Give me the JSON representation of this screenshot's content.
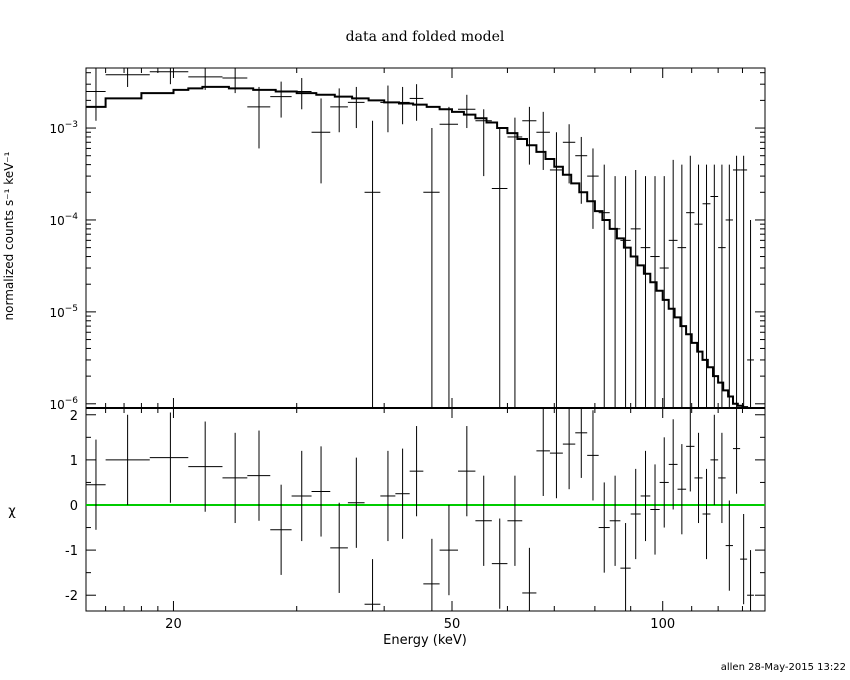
{
  "title": "data and folded model",
  "footer": "allen 28-May-2015 13:22",
  "colors": {
    "axes": "#000000",
    "data": "#000000",
    "model": "#000000",
    "zero_line": "#00cc00"
  },
  "chart_data": [
    {
      "type": "scatter",
      "panel": "spectrum",
      "title": "data and folded model",
      "xlabel": "Energy (keV)",
      "ylabel": "normalized counts s⁻¹ keV⁻¹",
      "xscale": "log",
      "yscale": "log",
      "xlim": [
        15,
        140
      ],
      "ylim": [
        9e-07,
        0.0045
      ],
      "x_ticks": [
        20,
        50,
        100
      ],
      "y_ticks": [
        {
          "value": 0.001,
          "base": "10",
          "exp": "−3"
        },
        {
          "value": 0.0001,
          "base": "10",
          "exp": "−4"
        },
        {
          "value": 1e-05,
          "base": "10",
          "exp": "−5"
        },
        {
          "value": 1e-06,
          "base": "10",
          "exp": "−6"
        }
      ],
      "series": [
        {
          "kind": "data",
          "points": [
            {
              "x": 15.5,
              "xlo": 15,
              "xhi": 16,
              "y": 0.0025,
              "ylo": 0.0012,
              "yhi": 0.0045
            },
            {
              "x": 17.2,
              "xlo": 16,
              "xhi": 18.5,
              "y": 0.0038,
              "ylo": 0.0028,
              "yhi": 0.0045
            },
            {
              "x": 19.8,
              "xlo": 18.5,
              "xhi": 21,
              "y": 0.0041,
              "ylo": 0.003,
              "yhi": 0.0045
            },
            {
              "x": 22.2,
              "xlo": 21,
              "xhi": 23.5,
              "y": 0.0036,
              "ylo": 0.0026,
              "yhi": 0.0045
            },
            {
              "x": 24.5,
              "xlo": 23.5,
              "xhi": 25.5,
              "y": 0.0035,
              "ylo": 0.0024,
              "yhi": 0.0045
            },
            {
              "x": 26.5,
              "xlo": 25.5,
              "xhi": 27.5,
              "y": 0.0017,
              "ylo": 0.0006,
              "yhi": 0.0028
            },
            {
              "x": 28.5,
              "xlo": 27.5,
              "xhi": 29.5,
              "y": 0.0022,
              "ylo": 0.0013,
              "yhi": 0.0032
            },
            {
              "x": 30.5,
              "xlo": 29.5,
              "xhi": 31.5,
              "y": 0.0025,
              "ylo": 0.0016,
              "yhi": 0.0035
            },
            {
              "x": 32.5,
              "xlo": 31.5,
              "xhi": 33.5,
              "y": 0.0009,
              "ylo": 0.00025,
              "yhi": 0.0021
            },
            {
              "x": 34.5,
              "xlo": 33.5,
              "xhi": 35.5,
              "y": 0.0017,
              "ylo": 0.0009,
              "yhi": 0.0027
            },
            {
              "x": 36.5,
              "xlo": 35.5,
              "xhi": 37.5,
              "y": 0.0019,
              "ylo": 0.001,
              "yhi": 0.0028
            },
            {
              "x": 38.5,
              "xlo": 37.5,
              "xhi": 39.5,
              "y": 0.0002,
              "ylo": 9e-07,
              "yhi": 0.0012
            },
            {
              "x": 40.5,
              "xlo": 39.5,
              "xhi": 41.5,
              "y": 0.0019,
              "ylo": 0.0009,
              "yhi": 0.0029
            },
            {
              "x": 42.5,
              "xlo": 41.5,
              "xhi": 43.5,
              "y": 0.0019,
              "ylo": 0.0011,
              "yhi": 0.0028
            },
            {
              "x": 44.5,
              "xlo": 43.5,
              "xhi": 45.5,
              "y": 0.0021,
              "ylo": 0.0012,
              "yhi": 0.003
            },
            {
              "x": 46.8,
              "xlo": 45.5,
              "xhi": 48,
              "y": 0.0002,
              "ylo": 9e-07,
              "yhi": 0.001
            },
            {
              "x": 49.5,
              "xlo": 48,
              "xhi": 51,
              "y": 0.0011,
              "ylo": 9e-07,
              "yhi": 0.0017
            },
            {
              "x": 52.5,
              "xlo": 51,
              "xhi": 54,
              "y": 0.0016,
              "ylo": 0.001,
              "yhi": 0.0023
            },
            {
              "x": 55.5,
              "xlo": 54,
              "xhi": 57,
              "y": 0.0012,
              "ylo": 0.0003,
              "yhi": 0.0016
            },
            {
              "x": 58.5,
              "xlo": 57,
              "xhi": 60,
              "y": 0.00022,
              "ylo": 9e-07,
              "yhi": 0.001
            },
            {
              "x": 61.5,
              "xlo": 60,
              "xhi": 63,
              "y": 0.0008,
              "ylo": 9e-07,
              "yhi": 0.0013
            },
            {
              "x": 64.5,
              "xlo": 63,
              "xhi": 66,
              "y": 0.0012,
              "ylo": 0.0004,
              "yhi": 0.0017
            },
            {
              "x": 67.5,
              "xlo": 66,
              "xhi": 69,
              "y": 0.0009,
              "ylo": 0.00035,
              "yhi": 0.0015
            },
            {
              "x": 70.5,
              "xlo": 69,
              "xhi": 72,
              "y": 0.00035,
              "ylo": 9e-07,
              "yhi": 0.0009
            },
            {
              "x": 73.5,
              "xlo": 72,
              "xhi": 75,
              "y": 0.0007,
              "ylo": 0.00025,
              "yhi": 0.0011
            },
            {
              "x": 76.5,
              "xlo": 75,
              "xhi": 78,
              "y": 0.0005,
              "ylo": 0.00015,
              "yhi": 0.0008
            },
            {
              "x": 79.5,
              "xlo": 78,
              "xhi": 81,
              "y": 0.0003,
              "ylo": 8e-05,
              "yhi": 0.0006
            },
            {
              "x": 82.5,
              "xlo": 81,
              "xhi": 84,
              "y": 0.00012,
              "ylo": 9e-07,
              "yhi": 0.0004
            },
            {
              "x": 85.5,
              "xlo": 84,
              "xhi": 87,
              "y": 8e-05,
              "ylo": 9e-07,
              "yhi": 0.0003
            },
            {
              "x": 88.5,
              "xlo": 87,
              "xhi": 90,
              "y": 6e-05,
              "ylo": 9e-07,
              "yhi": 0.0003
            },
            {
              "x": 91.5,
              "xlo": 90,
              "xhi": 93,
              "y": 8e-05,
              "ylo": 9e-07,
              "yhi": 0.00035
            },
            {
              "x": 94.5,
              "xlo": 93,
              "xhi": 96,
              "y": 5e-05,
              "ylo": 9e-07,
              "yhi": 0.0003
            },
            {
              "x": 97.5,
              "xlo": 96,
              "xhi": 99,
              "y": 4e-05,
              "ylo": 9e-07,
              "yhi": 0.0003
            },
            {
              "x": 100.5,
              "xlo": 99,
              "xhi": 102,
              "y": 3e-05,
              "ylo": 9e-07,
              "yhi": 0.0003
            },
            {
              "x": 103.5,
              "xlo": 102,
              "xhi": 105,
              "y": 6e-05,
              "ylo": 9e-07,
              "yhi": 0.00045
            },
            {
              "x": 106.5,
              "xlo": 105,
              "xhi": 108,
              "y": 5e-05,
              "ylo": 9e-07,
              "yhi": 0.0004
            },
            {
              "x": 109.5,
              "xlo": 108,
              "xhi": 111,
              "y": 0.00012,
              "ylo": 9e-07,
              "yhi": 0.0005
            },
            {
              "x": 112.5,
              "xlo": 111,
              "xhi": 114,
              "y": 9e-05,
              "ylo": 9e-07,
              "yhi": 0.0004
            },
            {
              "x": 115.5,
              "xlo": 114,
              "xhi": 117,
              "y": 0.00015,
              "ylo": 9e-07,
              "yhi": 0.0004
            },
            {
              "x": 118.5,
              "xlo": 117,
              "xhi": 120,
              "y": 0.00018,
              "ylo": 9e-07,
              "yhi": 0.0004
            },
            {
              "x": 121.5,
              "xlo": 120,
              "xhi": 123,
              "y": 5e-05,
              "ylo": 9e-07,
              "yhi": 0.0004
            },
            {
              "x": 124.5,
              "xlo": 123,
              "xhi": 126,
              "y": 0.0001,
              "ylo": 9e-07,
              "yhi": 0.0004
            },
            {
              "x": 127.5,
              "xlo": 126,
              "xhi": 129,
              "y": 0.00035,
              "ylo": 9e-07,
              "yhi": 0.0005
            },
            {
              "x": 130.5,
              "xlo": 129,
              "xhi": 132,
              "y": 0.00035,
              "ylo": 9e-07,
              "yhi": 0.0005
            },
            {
              "x": 133.5,
              "xlo": 132,
              "xhi": 135,
              "y": 3e-06,
              "ylo": 9e-07,
              "yhi": 0.0001
            }
          ]
        },
        {
          "kind": "model",
          "edges": [
            15,
            16,
            18,
            20,
            21,
            22,
            24,
            26,
            28,
            30,
            32,
            34,
            36,
            38,
            40,
            42,
            44,
            46,
            48,
            50,
            52,
            54,
            56,
            58,
            60,
            62,
            64,
            66,
            68,
            70,
            72,
            74,
            76,
            78,
            80,
            82,
            84,
            86,
            88,
            90,
            92,
            94,
            96,
            98,
            100,
            102,
            104,
            106,
            108,
            110,
            112,
            114,
            116,
            118,
            120,
            122,
            124,
            126,
            128,
            130,
            132,
            134,
            136,
            138,
            140
          ],
          "values": [
            0.0017,
            0.0021,
            0.0024,
            0.0026,
            0.0027,
            0.0028,
            0.0027,
            0.0026,
            0.0025,
            0.0024,
            0.0023,
            0.0022,
            0.0021,
            0.002,
            0.0019,
            0.00185,
            0.0018,
            0.0017,
            0.0016,
            0.0015,
            0.0014,
            0.00128,
            0.00115,
            0.001,
            0.00088,
            0.00076,
            0.00065,
            0.00055,
            0.00046,
            0.00038,
            0.00031,
            0.00025,
            0.0002,
            0.00016,
            0.000125,
            0.0001,
            8e-05,
            6.3e-05,
            5e-05,
            4e-05,
            3.2e-05,
            2.6e-05,
            2.1e-05,
            1.7e-05,
            1.35e-05,
            1.08e-05,
            8.7e-06,
            7e-06,
            5.7e-06,
            4.6e-06,
            3.7e-06,
            3e-06,
            2.5e-06,
            2e-06,
            1.7e-06,
            1.4e-06,
            1.2e-06,
            1e-06,
            9.5e-07,
            9.2e-07,
            9e-07,
            9e-07,
            9e-07,
            9e-07
          ]
        }
      ]
    },
    {
      "type": "scatter",
      "panel": "residuals",
      "xlabel": "Energy (keV)",
      "ylabel": "χ",
      "xscale": "log",
      "xlim": [
        15,
        140
      ],
      "ylim": [
        -2.35,
        2.15
      ],
      "x_ticks": [
        20,
        50,
        100
      ],
      "y_ticks": [
        2,
        1,
        0,
        -1,
        -2
      ],
      "zero_line": 0,
      "points": [
        {
          "x": 15.5,
          "xlo": 15,
          "xhi": 16,
          "y": 0.45
        },
        {
          "x": 17.2,
          "xlo": 16,
          "xhi": 18.5,
          "y": 1.0
        },
        {
          "x": 19.8,
          "xlo": 18.5,
          "xhi": 21,
          "y": 1.05
        },
        {
          "x": 22.2,
          "xlo": 21,
          "xhi": 23.5,
          "y": 0.85
        },
        {
          "x": 24.5,
          "xlo": 23.5,
          "xhi": 25.5,
          "y": 0.6
        },
        {
          "x": 26.5,
          "xlo": 25.5,
          "xhi": 27.5,
          "y": 0.65
        },
        {
          "x": 28.5,
          "xlo": 27.5,
          "xhi": 29.5,
          "y": -0.55
        },
        {
          "x": 30.5,
          "xlo": 29.5,
          "xhi": 31.5,
          "y": 0.2
        },
        {
          "x": 32.5,
          "xlo": 31.5,
          "xhi": 33.5,
          "y": 0.3
        },
        {
          "x": 34.5,
          "xlo": 33.5,
          "xhi": 35.5,
          "y": -0.95
        },
        {
          "x": 36.5,
          "xlo": 35.5,
          "xhi": 37.5,
          "y": 0.05
        },
        {
          "x": 38.5,
          "xlo": 37.5,
          "xhi": 39.5,
          "y": -2.2
        },
        {
          "x": 40.5,
          "xlo": 39.5,
          "xhi": 41.5,
          "y": 0.2
        },
        {
          "x": 42.5,
          "xlo": 41.5,
          "xhi": 43.5,
          "y": 0.25
        },
        {
          "x": 44.5,
          "xlo": 43.5,
          "xhi": 45.5,
          "y": 0.75
        },
        {
          "x": 46.8,
          "xlo": 45.5,
          "xhi": 48,
          "y": -1.75
        },
        {
          "x": 49.5,
          "xlo": 48,
          "xhi": 51,
          "y": -1.0
        },
        {
          "x": 52.5,
          "xlo": 51,
          "xhi": 54,
          "y": 0.75
        },
        {
          "x": 55.5,
          "xlo": 54,
          "xhi": 57,
          "y": -0.35
        },
        {
          "x": 58.5,
          "xlo": 57,
          "xhi": 60,
          "y": -1.3
        },
        {
          "x": 61.5,
          "xlo": 60,
          "xhi": 63,
          "y": -0.35
        },
        {
          "x": 64.5,
          "xlo": 63,
          "xhi": 66,
          "y": -1.95
        },
        {
          "x": 67.5,
          "xlo": 66,
          "xhi": 69,
          "y": 1.2
        },
        {
          "x": 70.5,
          "xlo": 69,
          "xhi": 72,
          "y": 1.15
        },
        {
          "x": 73.5,
          "xlo": 72,
          "xhi": 75,
          "y": 1.35
        },
        {
          "x": 76.5,
          "xlo": 75,
          "xhi": 78,
          "y": 1.6
        },
        {
          "x": 79.5,
          "xlo": 78,
          "xhi": 81,
          "y": 1.1
        },
        {
          "x": 82.5,
          "xlo": 81,
          "xhi": 84,
          "y": -0.5
        },
        {
          "x": 85.5,
          "xlo": 84,
          "xhi": 87,
          "y": -0.35
        },
        {
          "x": 88.5,
          "xlo": 87,
          "xhi": 90,
          "y": -1.4
        },
        {
          "x": 91.5,
          "xlo": 90,
          "xhi": 93,
          "y": -0.2
        },
        {
          "x": 94.5,
          "xlo": 93,
          "xhi": 96,
          "y": 0.2
        },
        {
          "x": 97.5,
          "xlo": 96,
          "xhi": 99,
          "y": -0.1
        },
        {
          "x": 100.5,
          "xlo": 99,
          "xhi": 102,
          "y": 0.5
        },
        {
          "x": 103.5,
          "xlo": 102,
          "xhi": 105,
          "y": 0.9
        },
        {
          "x": 106.5,
          "xlo": 105,
          "xhi": 108,
          "y": 0.35
        },
        {
          "x": 109.5,
          "xlo": 108,
          "xhi": 111,
          "y": 1.3
        },
        {
          "x": 112.5,
          "xlo": 111,
          "xhi": 114,
          "y": 0.6
        },
        {
          "x": 115.5,
          "xlo": 114,
          "xhi": 117,
          "y": -0.2
        },
        {
          "x": 118.5,
          "xlo": 117,
          "xhi": 120,
          "y": 1.0
        },
        {
          "x": 121.5,
          "xlo": 120,
          "xhi": 123,
          "y": 0.6
        },
        {
          "x": 124.5,
          "xlo": 123,
          "xhi": 126,
          "y": -0.9
        },
        {
          "x": 127.5,
          "xlo": 126,
          "xhi": 129,
          "y": 1.25
        },
        {
          "x": 130.5,
          "xlo": 129,
          "xhi": 132,
          "y": -1.2
        },
        {
          "x": 133.5,
          "xlo": 132,
          "xhi": 135,
          "y": -2.0
        }
      ]
    }
  ]
}
